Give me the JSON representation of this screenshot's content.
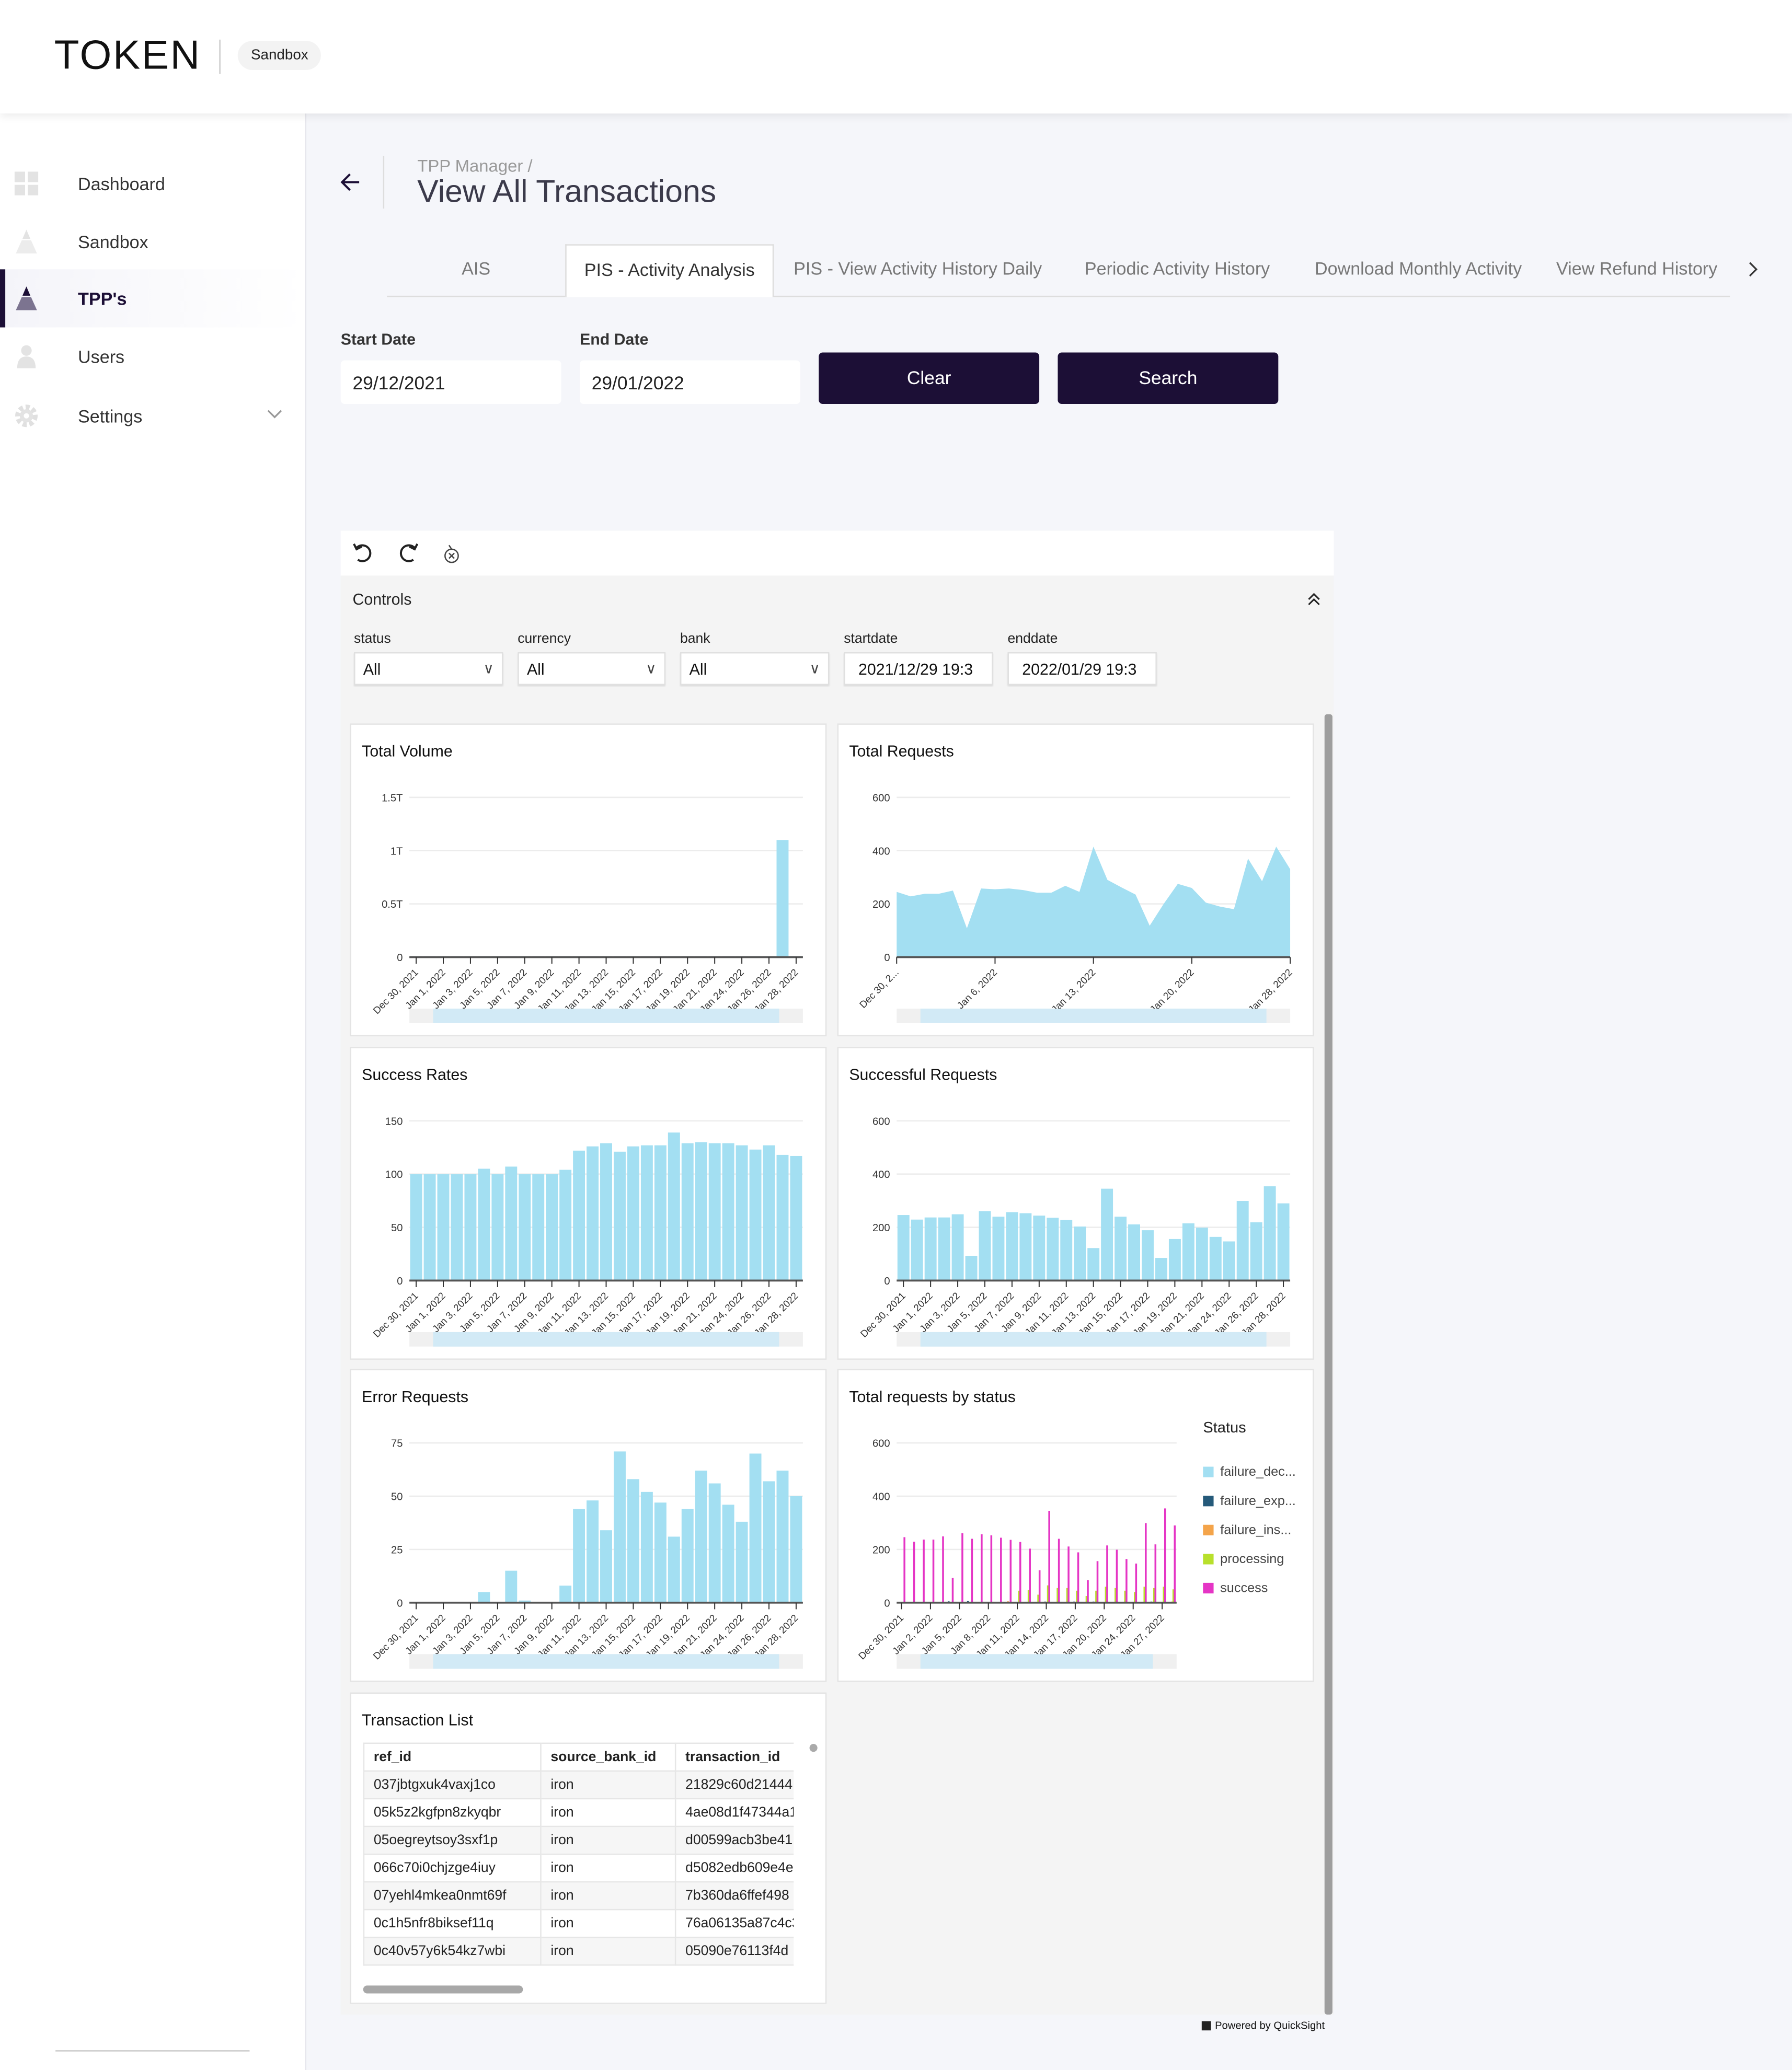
{
  "header": {
    "logo": "TOKEN",
    "environment": "Sandbox"
  },
  "sidebar": {
    "items": [
      {
        "label": "Dashboard",
        "icon": "grid-icon"
      },
      {
        "label": "Sandbox",
        "icon": "pyramid-icon"
      },
      {
        "label": "TPP's",
        "icon": "pyramid-icon",
        "active": true
      },
      {
        "label": "Users",
        "icon": "user-icon"
      },
      {
        "label": "Settings",
        "icon": "gear-icon",
        "has_submenu": true
      }
    ]
  },
  "page": {
    "breadcrumb": "TPP Manager /",
    "title": "View All Transactions"
  },
  "tabs": [
    {
      "label": "AIS"
    },
    {
      "label": "PIS - Activity Analysis",
      "active": true
    },
    {
      "label": "PIS - View Activity History Daily"
    },
    {
      "label": "Periodic Activity History"
    },
    {
      "label": "Download Monthly Activity"
    },
    {
      "label": "View Refund History"
    }
  ],
  "filters": {
    "start_label": "Start Date",
    "start_value": "29/12/2021",
    "end_label": "End Date",
    "end_value": "29/01/2022",
    "clear": "Clear",
    "search": "Search"
  },
  "controls": {
    "title": "Controls",
    "fields": [
      {
        "label": "status",
        "value": "All"
      },
      {
        "label": "currency",
        "value": "All"
      },
      {
        "label": "bank",
        "value": "All"
      },
      {
        "label": "startdate",
        "value": "2021/12/29 19:3"
      },
      {
        "label": "enddate",
        "value": "2022/01/29 19:3"
      }
    ]
  },
  "colors": {
    "primary": "#1c0f36",
    "bar": "#a3dff2"
  },
  "chart_data": [
    {
      "title": "Total Volume",
      "type": "bar",
      "ylim": [
        0,
        1500000000000
      ],
      "yticks": [
        {
          "v": 0,
          "l": "0"
        },
        {
          "v": 500000000000,
          "l": "0.5T"
        },
        {
          "v": 1000000000000,
          "l": "1T"
        },
        {
          "v": 1500000000000,
          "l": "1.5T"
        }
      ],
      "tick_every": 2,
      "categories": [
        "Dec 30, 2021",
        "Dec 31, 2021",
        "Jan 1, 2022",
        "Jan 2, 2022",
        "Jan 3, 2022",
        "Jan 4, 2022",
        "Jan 5, 2022",
        "Jan 6, 2022",
        "Jan 7, 2022",
        "Jan 8, 2022",
        "Jan 9, 2022",
        "Jan 10, 2022",
        "Jan 11, 2022",
        "Jan 12, 2022",
        "Jan 13, 2022",
        "Jan 14, 2022",
        "Jan 15, 2022",
        "Jan 16, 2022",
        "Jan 17, 2022",
        "Jan 18, 2022",
        "Jan 19, 2022",
        "Jan 20, 2022",
        "Jan 21, 2022",
        "Jan 23, 2022",
        "Jan 24, 2022",
        "Jan 25, 2022",
        "Jan 26, 2022",
        "Jan 27, 2022",
        "Jan 28, 2022"
      ],
      "series": [
        {
          "values": [
            10000000000,
            10000000000,
            10000000000,
            10000000000,
            10000000000,
            10000000000,
            10000000000,
            10000000000,
            10000000000,
            10000000000,
            10000000000,
            10000000000,
            10000000000,
            10000000000,
            10000000000,
            10000000000,
            10000000000,
            10000000000,
            10000000000,
            10000000000,
            10000000000,
            10000000000,
            10000000000,
            10000000000,
            10000000000,
            10000000000,
            10000000000,
            1100000000000,
            10000000000
          ]
        }
      ]
    },
    {
      "title": "Total Requests",
      "type": "area",
      "ylim": [
        0,
        600
      ],
      "yticks": [
        {
          "v": 0,
          "l": "0"
        },
        {
          "v": 200,
          "l": "200"
        },
        {
          "v": 400,
          "l": "400"
        },
        {
          "v": 600,
          "l": "600"
        }
      ],
      "tick_labels": [
        {
          "i": 0,
          "l": "Dec 30, 2..."
        },
        {
          "i": 7,
          "l": "Jan 6, 2022"
        },
        {
          "i": 14,
          "l": "Jan 13, 2022"
        },
        {
          "i": 21,
          "l": "Jan 20, 2022"
        },
        {
          "i": 28,
          "l": "Jan 28, 2022"
        }
      ],
      "categories": "same as Total Volume",
      "series": [
        {
          "values": [
            245,
            228,
            238,
            238,
            250,
            108,
            258,
            255,
            258,
            252,
            242,
            242,
            268,
            245,
            415,
            290,
            262,
            235,
            118,
            200,
            275,
            260,
            205,
            190,
            180,
            370,
            285,
            415,
            330
          ]
        }
      ]
    },
    {
      "title": "Success Rates",
      "type": "bar",
      "ylim": [
        0,
        150
      ],
      "yticks": [
        {
          "v": 0,
          "l": "0"
        },
        {
          "v": 50,
          "l": "50"
        },
        {
          "v": 100,
          "l": "100"
        },
        {
          "v": 150,
          "l": "150"
        }
      ],
      "tick_every": 2,
      "series": [
        {
          "values": [
            100,
            100,
            100,
            100,
            100,
            105,
            100,
            107,
            100,
            100,
            100,
            104,
            122,
            126,
            129,
            121,
            126,
            127,
            127,
            139,
            129,
            130,
            129,
            129,
            127,
            123,
            127,
            118,
            117
          ]
        }
      ]
    },
    {
      "title": "Successful Requests",
      "type": "bar",
      "ylim": [
        0,
        600
      ],
      "yticks": [
        {
          "v": 0,
          "l": "0"
        },
        {
          "v": 200,
          "l": "200"
        },
        {
          "v": 400,
          "l": "400"
        },
        {
          "v": 600,
          "l": "600"
        }
      ],
      "tick_every": 2,
      "series": [
        {
          "values": [
            246,
            229,
            237,
            237,
            249,
            93,
            261,
            240,
            257,
            253,
            244,
            236,
            228,
            203,
            122,
            345,
            240,
            211,
            189,
            85,
            156,
            215,
            199,
            164,
            147,
            299,
            219,
            354,
            290
          ]
        }
      ]
    },
    {
      "title": "Error Requests",
      "type": "bar",
      "ylim": [
        0,
        75
      ],
      "yticks": [
        {
          "v": 0,
          "l": "0"
        },
        {
          "v": 25,
          "l": "25"
        },
        {
          "v": 50,
          "l": "50"
        },
        {
          "v": 75,
          "l": "75"
        }
      ],
      "tick_every": 2,
      "series": [
        {
          "values": [
            0,
            0,
            0,
            0,
            0,
            5,
            0,
            15,
            1,
            0,
            0,
            8,
            44,
            48,
            34,
            71,
            58,
            52,
            47,
            31,
            44,
            62,
            56,
            46,
            38,
            70,
            57,
            62,
            50
          ]
        }
      ]
    },
    {
      "title": "Total requests by status",
      "type": "grouped-bar",
      "ylim": [
        0,
        600
      ],
      "yticks": [
        {
          "v": 0,
          "l": "0"
        },
        {
          "v": 200,
          "l": "200"
        },
        {
          "v": 400,
          "l": "400"
        },
        {
          "v": 600,
          "l": "600"
        }
      ],
      "tick_every": 3,
      "legend_title": "Status",
      "legend_position": "right",
      "series": [
        {
          "name": "failure_dec...",
          "color": "#a3dff2",
          "values": [
            0,
            0,
            0,
            0,
            0,
            0,
            0,
            0,
            0,
            0,
            0,
            0,
            0,
            0,
            0,
            0,
            0,
            0,
            0,
            0,
            0,
            0,
            0,
            0,
            0,
            0,
            0,
            0,
            0
          ]
        },
        {
          "name": "failure_exp...",
          "color": "#255a7a",
          "values": [
            0,
            0,
            0,
            0,
            0,
            5,
            0,
            6,
            0,
            0,
            0,
            0,
            0,
            0,
            0,
            4,
            0,
            0,
            4,
            0,
            4,
            0,
            0,
            0,
            0,
            0,
            4,
            0,
            0
          ]
        },
        {
          "name": "failure_ins...",
          "color": "#f4a44a",
          "values": [
            0,
            0,
            0,
            0,
            0,
            0,
            0,
            0,
            0,
            0,
            0,
            5,
            0,
            0,
            0,
            0,
            0,
            0,
            0,
            0,
            0,
            0,
            0,
            0,
            0,
            0,
            0,
            0,
            4
          ]
        },
        {
          "name": "processing",
          "color": "#b8e02c",
          "values": [
            0,
            0,
            0,
            0,
            0,
            0,
            0,
            0,
            0,
            0,
            0,
            0,
            45,
            48,
            30,
            65,
            55,
            55,
            45,
            25,
            45,
            60,
            55,
            45,
            40,
            60,
            55,
            60,
            50
          ]
        },
        {
          "name": "success",
          "color": "#e535c5",
          "values": [
            246,
            229,
            237,
            237,
            249,
            93,
            261,
            240,
            257,
            253,
            244,
            236,
            228,
            203,
            122,
            345,
            240,
            211,
            189,
            85,
            156,
            215,
            199,
            164,
            147,
            299,
            219,
            354,
            290
          ]
        }
      ]
    }
  ],
  "transaction_list": {
    "title": "Transaction List",
    "columns": [
      "ref_id",
      "source_bank_id",
      "transaction_id"
    ],
    "rows": [
      [
        "037jbtgxuk4vaxj1co",
        "iron",
        "21829c60d21444"
      ],
      [
        "05k5z2kgfpn8zkyqbr",
        "iron",
        "4ae08d1f47344a1"
      ],
      [
        "05oegreytsoy3sxf1p",
        "iron",
        "d00599acb3be41"
      ],
      [
        "066c70i0chjzge4iuy",
        "iron",
        "d5082edb609e4e"
      ],
      [
        "07yehl4mkea0nmt69f",
        "iron",
        "7b360da6ffef498"
      ],
      [
        "0c1h5nfr8biksef11q",
        "iron",
        "76a06135a87c4c3"
      ],
      [
        "0c40v57y6k54kz7wbi",
        "iron",
        "05090e76113f4d"
      ]
    ]
  },
  "footer": {
    "powered_by": "Powered by QuickSight"
  }
}
